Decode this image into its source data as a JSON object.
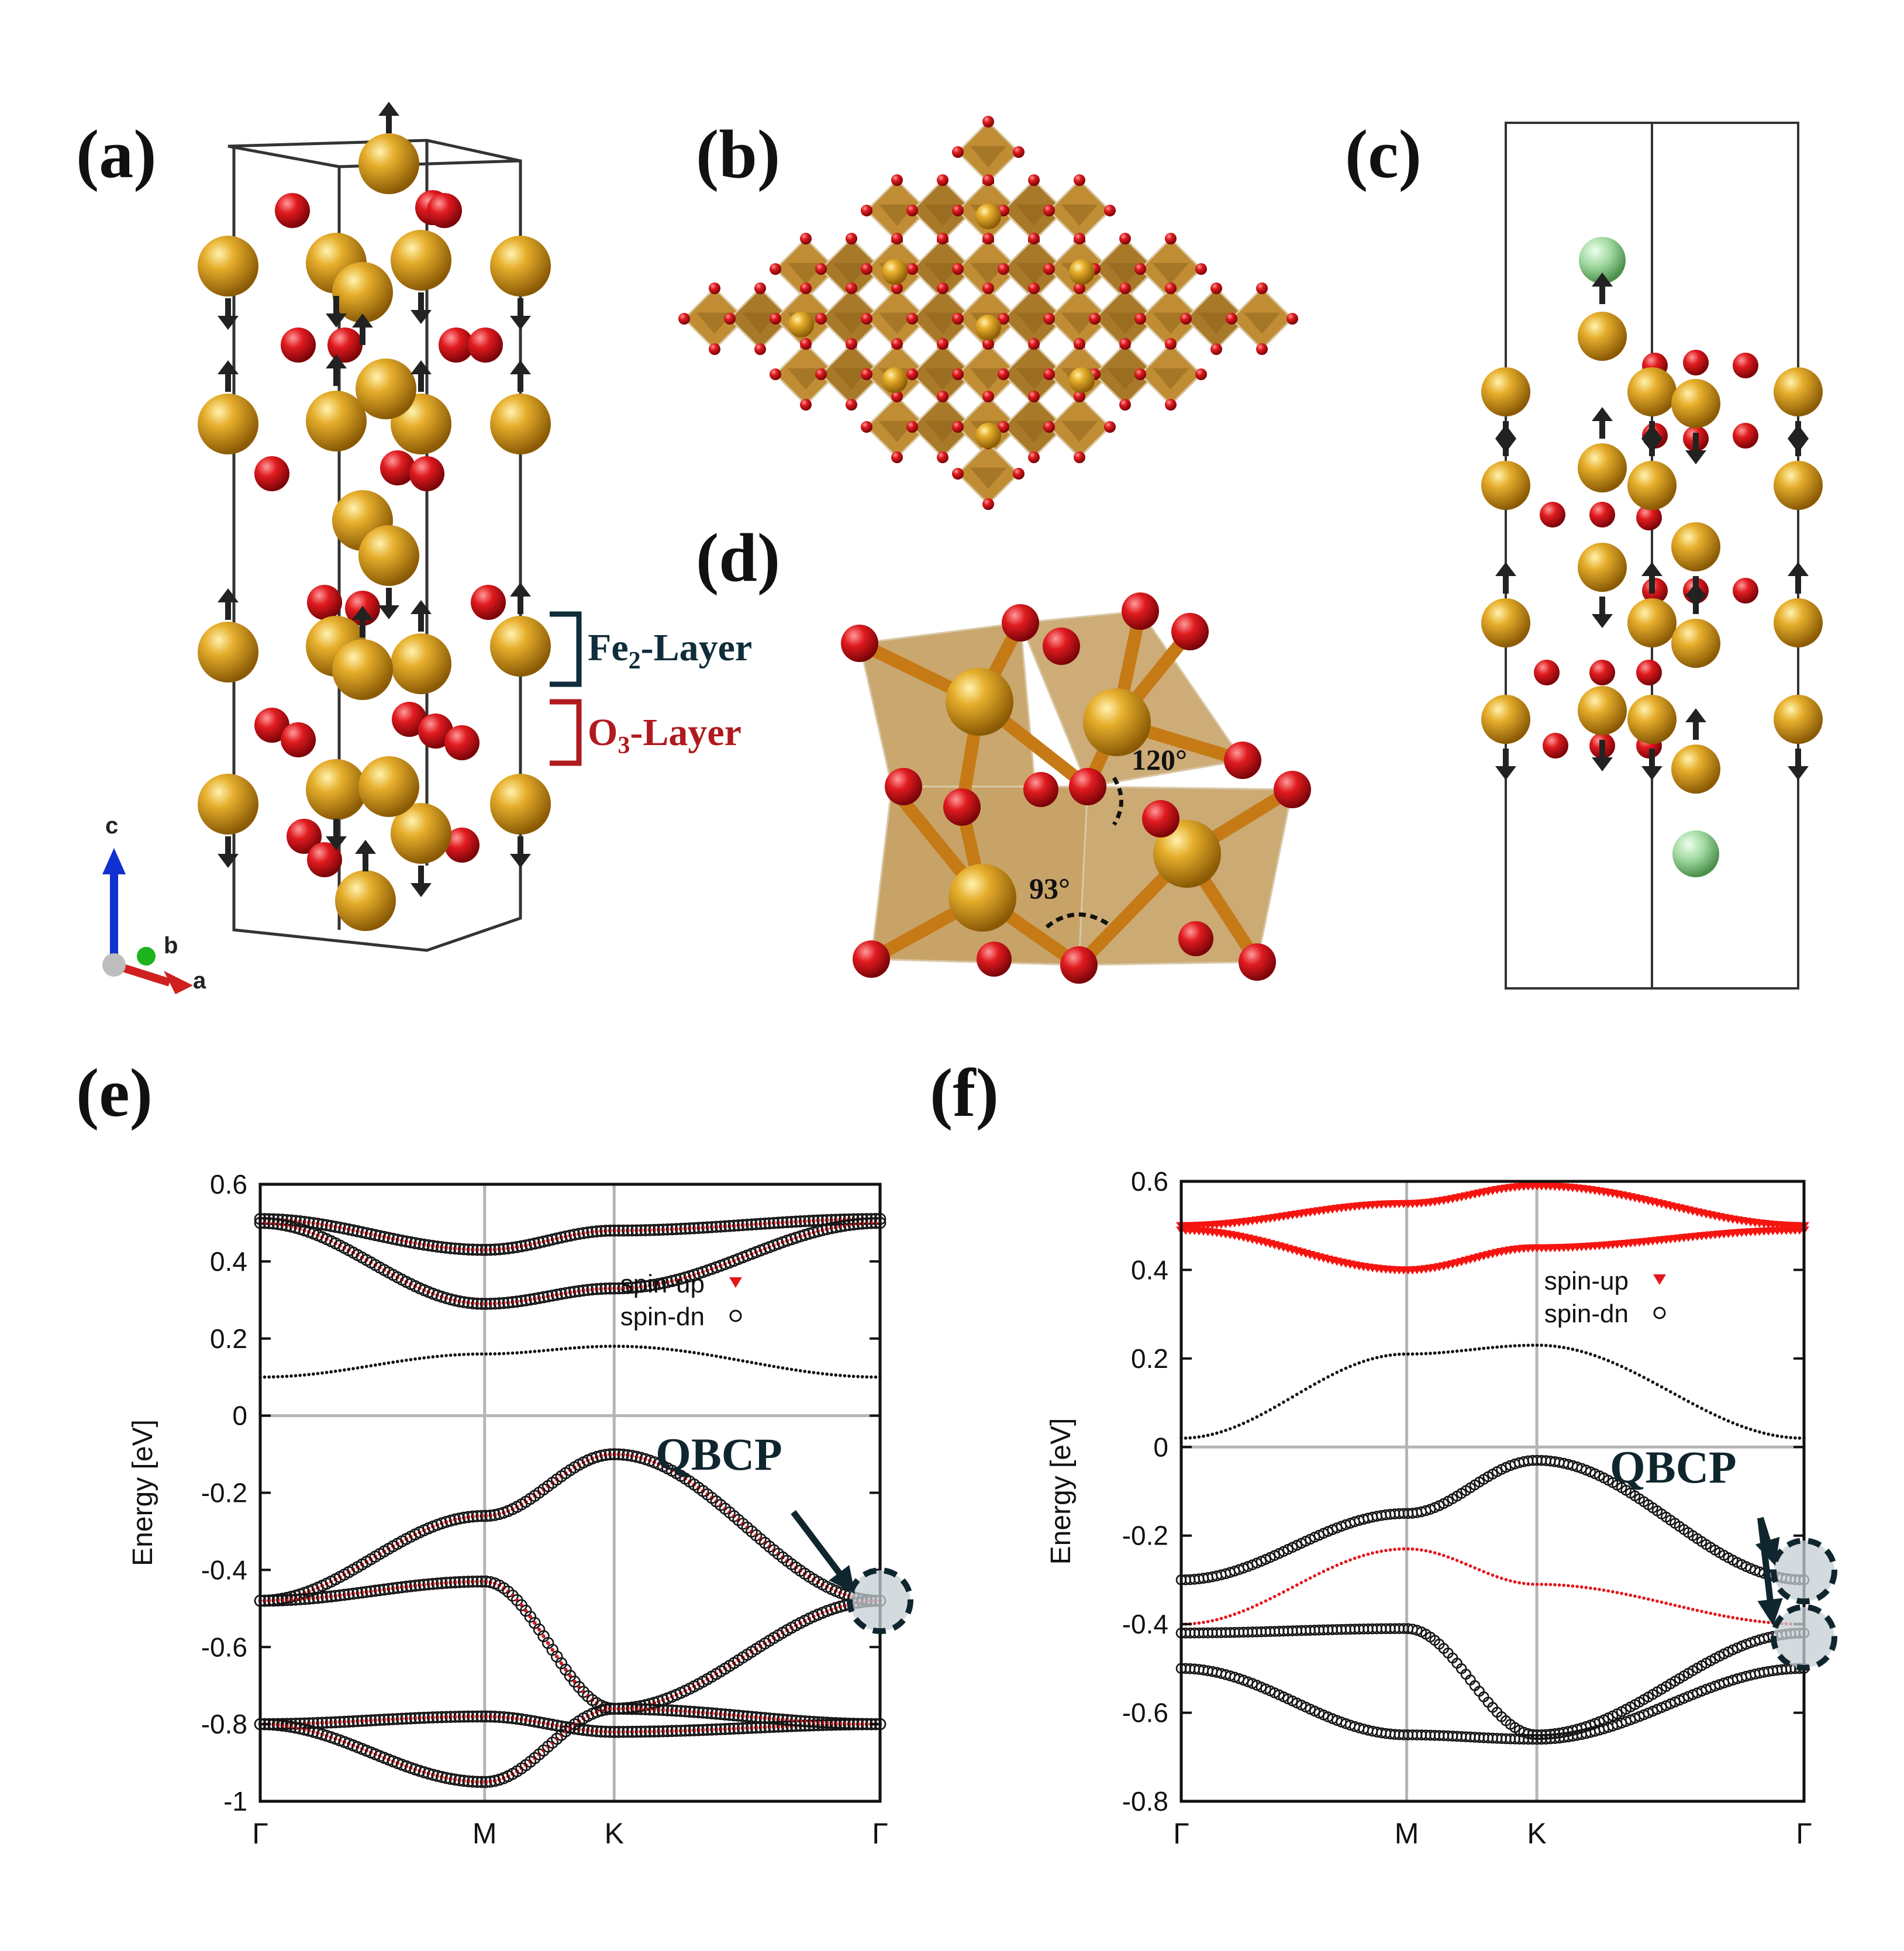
{
  "panels": {
    "a": "(a)",
    "b": "(b)",
    "c": "(c)",
    "d": "(d)",
    "e": "(e)",
    "f": "(f)"
  },
  "structure": {
    "fe2_layer": "Fe",
    "fe2_sub": "2",
    "fe2_suffix": "-Layer",
    "o3_layer": "O",
    "o3_sub": "3",
    "o3_suffix": "-Layer",
    "angle_120": "120°",
    "angle_93": "93°",
    "axes": {
      "c": "c",
      "b": "b",
      "a": "a"
    },
    "colors": {
      "fe": "#d49a1e",
      "o": "#d4161c",
      "extra_atom": "#8fd08f",
      "fe2_tag": "#0f2d3a",
      "o3_tag": "#b01a1f"
    }
  },
  "chart_data": [
    {
      "type": "line",
      "panel": "(e)",
      "ylabel": "Energy [eV]",
      "ylim": [
        -1,
        0.6
      ],
      "yticks": [
        "0.6",
        "0.4",
        "0.2",
        "0",
        "-0.2",
        "-0.4",
        "-0.6",
        "-0.8",
        "-1"
      ],
      "xticks": [
        "Γ",
        "M",
        "K",
        "Γ"
      ],
      "x": [
        0,
        0.362,
        0.571,
        1.0
      ],
      "legend": [
        "spin-up",
        "spin-dn"
      ],
      "legend_position": "top-right",
      "annotation": "QBCP",
      "annotation_point": {
        "x": 1.0,
        "y": -0.48
      },
      "grid": true,
      "series": [
        {
          "legend": "spin-up",
          "values": [
            0.51,
            0.43,
            0.48,
            0.51
          ]
        },
        {
          "legend": "spin-up",
          "values": [
            0.5,
            0.29,
            0.33,
            0.5
          ]
        },
        {
          "legend": "spin-dn",
          "values": [
            0.1,
            0.16,
            0.18,
            0.1
          ]
        },
        {
          "legend": "spin-up",
          "values": [
            -0.48,
            -0.26,
            -0.1,
            -0.48
          ]
        },
        {
          "legend": "spin-up",
          "values": [
            -0.48,
            -0.43,
            -0.76,
            -0.48
          ]
        },
        {
          "legend": "spin-up",
          "values": [
            -0.8,
            -0.78,
            -0.82,
            -0.8
          ]
        },
        {
          "legend": "spin-up",
          "values": [
            -0.8,
            -0.95,
            -0.76,
            -0.8
          ]
        }
      ]
    },
    {
      "type": "line",
      "panel": "(f)",
      "ylabel": "Energy [eV]",
      "ylim": [
        -0.8,
        0.6
      ],
      "yticks": [
        "0.6",
        "0.4",
        "0.2",
        "0",
        "-0.2",
        "-0.4",
        "-0.6",
        "-0.8"
      ],
      "xticks": [
        "Γ",
        "M",
        "K",
        "Γ"
      ],
      "x": [
        0,
        0.362,
        0.571,
        1.0
      ],
      "legend": [
        "spin-up",
        "spin-dn"
      ],
      "legend_position": "top-right",
      "annotation": "QBCP",
      "annotation_points": [
        {
          "x": 1.0,
          "y": -0.28
        },
        {
          "x": 1.0,
          "y": -0.43
        }
      ],
      "grid": true,
      "series": [
        {
          "legend": "spin-up",
          "values": [
            0.49,
            0.4,
            0.45,
            0.49
          ]
        },
        {
          "legend": "spin-up",
          "values": [
            0.5,
            0.55,
            0.59,
            0.5
          ]
        },
        {
          "legend": "spin-dn",
          "values": [
            0.02,
            0.21,
            0.23,
            0.02
          ]
        },
        {
          "legend": "spin-dn",
          "values": [
            -0.3,
            -0.15,
            -0.03,
            -0.3
          ]
        },
        {
          "legend": "spin-dn",
          "values": [
            -0.42,
            -0.41,
            -0.65,
            -0.42
          ]
        },
        {
          "legend": "spin-dn",
          "values": [
            -0.5,
            -0.65,
            -0.66,
            -0.5
          ]
        },
        {
          "legend": "spin-up",
          "values": [
            -0.4,
            -0.23,
            -0.31,
            -0.4
          ]
        }
      ]
    }
  ]
}
